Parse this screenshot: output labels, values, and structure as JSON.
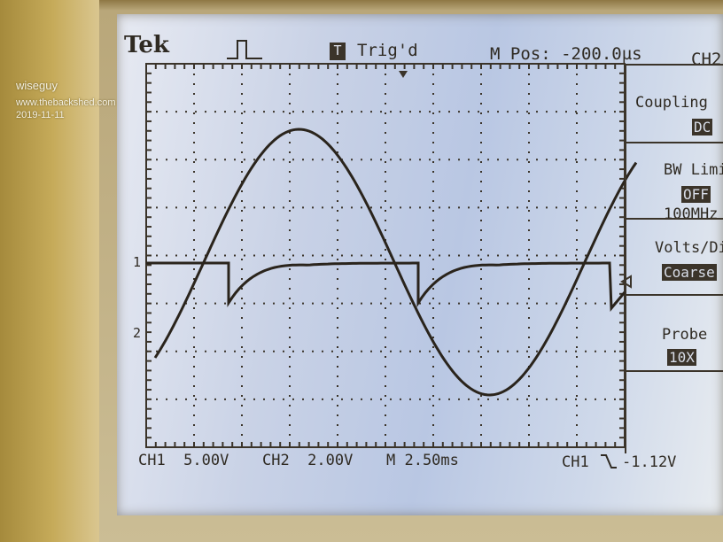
{
  "watermark": {
    "user": "wiseguy",
    "site": "www.thebackshed.com",
    "date": "2019-11-11"
  },
  "scope": {
    "brand": "Tek",
    "trigger_status": "Trig'd",
    "trigger_icon": "T",
    "horizontal_position": "M Pos: -200.0µs",
    "channel_menu_title": "CH2",
    "ch1_marker": "1",
    "ch2_marker": "2",
    "status_bar": {
      "ch1_scale": "CH1  5.00V",
      "ch2_scale": "CH2  2.00V",
      "timebase": "M 2.50ms",
      "trigger_source": "CH1",
      "trigger_slope_icon": "falling-edge-icon",
      "trigger_level": "-1.12V"
    },
    "menu": [
      {
        "label": "Coupling",
        "value": "DC"
      },
      {
        "label": "BW Limit",
        "value": "OFF",
        "sub": "100MHz"
      },
      {
        "label": "Volts/Div",
        "value": "Coarse"
      },
      {
        "label": "Probe",
        "value": "10X"
      }
    ]
  }
}
